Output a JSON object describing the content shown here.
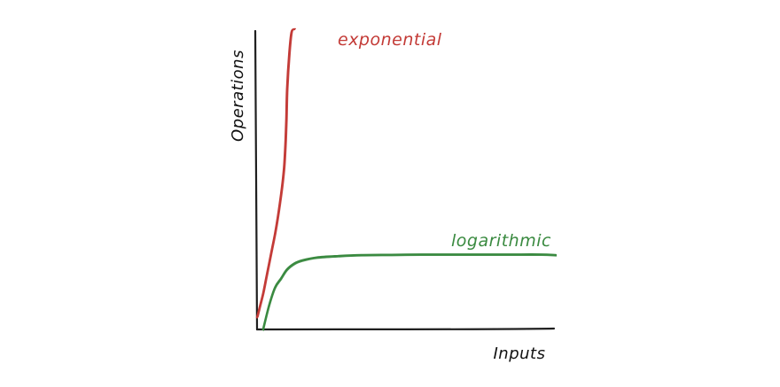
{
  "chart_data": {
    "type": "line",
    "title": "",
    "xlabel": "Inputs",
    "ylabel": "Operations",
    "grid": false,
    "legend": "none",
    "series": [
      {
        "name": "exponential",
        "color": "#c33a36",
        "x": [
          0,
          2,
          4,
          6,
          8,
          10,
          12,
          14,
          16,
          17,
          18,
          18.5,
          19,
          19.5,
          20,
          21.5,
          23,
          25
        ],
        "y": [
          4,
          8,
          12,
          17,
          22,
          27,
          32,
          38,
          45,
          49,
          54,
          58,
          63,
          70,
          80,
          92,
          99,
          100
        ]
      },
      {
        "name": "logarithmic",
        "color": "#3a8a40",
        "x": [
          4,
          8,
          12,
          16,
          20,
          25,
          30,
          40,
          55,
          70,
          90,
          110,
          130,
          150,
          170,
          190,
          200
        ],
        "y": [
          0,
          8,
          14,
          17,
          20,
          22,
          23,
          24,
          24.5,
          24.8,
          24.9,
          25,
          25,
          25,
          25,
          25,
          24.8
        ]
      }
    ]
  }
}
